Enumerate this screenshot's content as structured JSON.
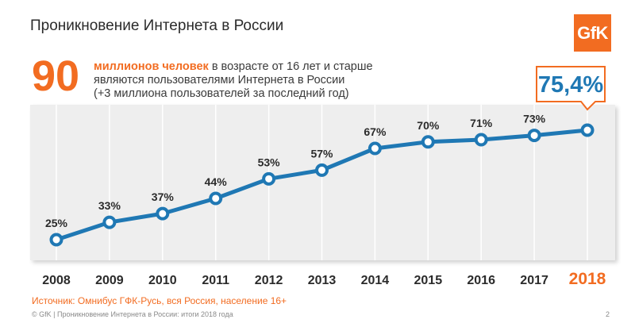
{
  "slide": {
    "title": "Проникновение Интернета в России",
    "logo_text": "GfK",
    "headline_number": "90",
    "headline_lead": "миллионов человек",
    "headline_rest": " в возрасте от 16 лет и старше",
    "headline_line2": "являются пользователями Интернета в России",
    "headline_line3": "(+3 миллиона пользователей за последний год)",
    "source": "Источник: Омнибус ГФК-Русь, вся Россия, население 16+",
    "footer": "© GfK | Проникновение Интернета в России: итоги 2018 года",
    "page_number": "2"
  },
  "colors": {
    "accent": "#f26c21",
    "line": "#1f78b4",
    "text": "#2b2b2b",
    "panel": "#eeeeee"
  },
  "chart_data": {
    "type": "line",
    "title": "Проникновение Интернета в России",
    "categories": [
      "2008",
      "2009",
      "2010",
      "2011",
      "2012",
      "2013",
      "2014",
      "2015",
      "2016",
      "2017",
      "2018"
    ],
    "series": [
      {
        "values": [
          25,
          33,
          37,
          44,
          53,
          57,
          67,
          70,
          71,
          73,
          75.4
        ],
        "labels": [
          "25%",
          "33%",
          "37%",
          "44%",
          "53%",
          "57%",
          "67%",
          "70%",
          "71%",
          "73%",
          "75,4%"
        ]
      }
    ],
    "highlight_index": 10,
    "ylim": [
      20,
      78
    ],
    "grid": "vertical"
  }
}
